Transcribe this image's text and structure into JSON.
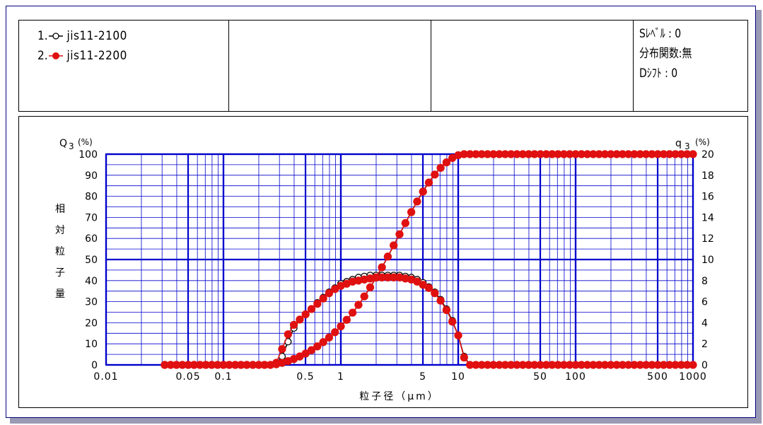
{
  "legend": [
    {
      "num": "1.",
      "name": "jis11-2100",
      "marker": "open-circle"
    },
    {
      "num": "2.",
      "name": "jis11-2200",
      "marker": "filled-circle"
    }
  ],
  "stats": {
    "line1": "Sﾚﾍﾞﾙ : 0",
    "line2": "分布関数:無",
    "line3": "Dｼﾌﾄ  : 0"
  },
  "colors": {
    "grid": "#0000cc",
    "series1": "#000000",
    "series2": "#e01010",
    "frame": "#000080"
  },
  "chart_data": {
    "type": "line",
    "title": "",
    "xlabel": "粒子径（μm）",
    "ylabel_left_symbol": "Q",
    "ylabel_left_sub": "3",
    "ylabel_left_unit": "(%)",
    "ylabel_right_symbol": "q",
    "ylabel_right_sub": "3",
    "ylabel_right_unit": "(%)",
    "ylabel_vertical": "相対粒子量",
    "x_scale": "log",
    "xlim": [
      0.01,
      1000
    ],
    "ylim_left": [
      0,
      100
    ],
    "ylim_right": [
      0,
      20
    ],
    "x_tick_labels": [
      {
        "v": 0.01,
        "t": "0.01"
      },
      {
        "v": 0.05,
        "t": "0.05"
      },
      {
        "v": 0.1,
        "t": "0.1"
      },
      {
        "v": 0.5,
        "t": "0.5"
      },
      {
        "v": 1,
        "t": "1"
      },
      {
        "v": 5,
        "t": "5"
      },
      {
        "v": 10,
        "t": "10"
      },
      {
        "v": 50,
        "t": "50"
      },
      {
        "v": 100,
        "t": "100"
      },
      {
        "v": 500,
        "t": "500"
      },
      {
        "v": 1000,
        "t": "1000"
      }
    ],
    "y_left_ticks": [
      "0",
      "10",
      "20",
      "30",
      "40",
      "50",
      "60",
      "70",
      "80",
      "90",
      "100"
    ],
    "y_right_ticks": [
      "0",
      "2",
      "4",
      "6",
      "8",
      "10",
      "12",
      "14",
      "16",
      "18",
      "20"
    ],
    "grid": true,
    "x": [
      0.0316,
      0.0355,
      0.0398,
      0.0447,
      0.0501,
      0.0562,
      0.0631,
      0.0708,
      0.0794,
      0.0891,
      0.1,
      0.112,
      0.126,
      0.141,
      0.158,
      0.178,
      0.2,
      0.224,
      0.251,
      0.282,
      0.316,
      0.355,
      0.398,
      0.447,
      0.501,
      0.562,
      0.631,
      0.708,
      0.794,
      0.891,
      1.0,
      1.122,
      1.259,
      1.413,
      1.585,
      1.778,
      1.995,
      2.239,
      2.512,
      2.818,
      3.162,
      3.548,
      3.981,
      4.467,
      5.012,
      5.623,
      6.31,
      7.079,
      7.943,
      8.913,
      10.0,
      11.22,
      12.59,
      14.13,
      15.85,
      17.78,
      19.95,
      22.39,
      25.12,
      28.18,
      31.62,
      35.48,
      39.81,
      44.67,
      50.12,
      56.23,
      63.1,
      70.79,
      79.43,
      89.13,
      100,
      112.2,
      125.9,
      141.3,
      158.5,
      177.8,
      199.5,
      223.9,
      251.2,
      281.8,
      316.2,
      354.8,
      398.1,
      446.7,
      501.2,
      562.3,
      631,
      707.9,
      794.3,
      891.3,
      1000
    ],
    "series": [
      {
        "name": "jis11-2100",
        "cumulative": [
          0,
          0,
          0,
          0,
          0,
          0,
          0,
          0,
          0,
          0,
          0,
          0,
          0,
          0,
          0,
          0,
          0,
          0,
          0,
          0.2,
          0.8,
          1.6,
          2.6,
          3.8,
          5.2,
          6.8,
          8.6,
          10.6,
          12.9,
          15.4,
          18.2,
          21.3,
          24.7,
          28.4,
          32.4,
          36.7,
          41.3,
          46.2,
          51.3,
          56.6,
          61.9,
          67.3,
          72.6,
          77.7,
          82.4,
          86.7,
          90.4,
          93.6,
          96.2,
          98.3,
          99.6,
          100,
          100,
          100,
          100,
          100,
          100,
          100,
          100,
          100,
          100,
          100,
          100,
          100,
          100,
          100,
          100,
          100,
          100,
          100,
          100,
          100,
          100,
          100,
          100,
          100,
          100,
          100,
          100,
          100,
          100,
          100,
          100,
          100,
          100,
          100,
          100,
          100,
          100,
          100,
          100
        ],
        "frequency": [
          0,
          0,
          0,
          0,
          0,
          0,
          0,
          0,
          0,
          0,
          0,
          0,
          0,
          0,
          0,
          0,
          0,
          0,
          0,
          0.1,
          0.8,
          2.2,
          3.5,
          4.3,
          4.8,
          5.3,
          5.9,
          6.4,
          6.9,
          7.3,
          7.7,
          7.9,
          8.1,
          8.3,
          8.4,
          8.5,
          8.5,
          8.5,
          8.5,
          8.5,
          8.5,
          8.4,
          8.3,
          8.1,
          7.8,
          7.4,
          6.9,
          6.2,
          5.3,
          4.2,
          2.8,
          0.8,
          0,
          0,
          0,
          0,
          0,
          0,
          0,
          0,
          0,
          0,
          0,
          0,
          0,
          0,
          0,
          0,
          0,
          0,
          0,
          0,
          0,
          0,
          0,
          0,
          0,
          0,
          0,
          0,
          0,
          0,
          0,
          0,
          0,
          0,
          0,
          0,
          0,
          0,
          0
        ]
      },
      {
        "name": "jis11-2200",
        "cumulative": [
          0,
          0,
          0,
          0,
          0,
          0,
          0,
          0,
          0,
          0,
          0,
          0,
          0,
          0,
          0,
          0,
          0,
          0,
          0,
          0.3,
          1.0,
          1.8,
          2.8,
          4.0,
          5.4,
          7.0,
          8.8,
          10.8,
          13.0,
          15.5,
          18.3,
          21.4,
          24.8,
          28.5,
          32.5,
          36.8,
          41.4,
          46.3,
          51.4,
          56.7,
          62.0,
          67.3,
          72.5,
          77.5,
          82.2,
          86.5,
          90.3,
          93.5,
          96.1,
          98.2,
          99.5,
          100,
          100,
          100,
          100,
          100,
          100,
          100,
          100,
          100,
          100,
          100,
          100,
          100,
          100,
          100,
          100,
          100,
          100,
          100,
          100,
          100,
          100,
          100,
          100,
          100,
          100,
          100,
          100,
          100,
          100,
          100,
          100,
          100,
          100,
          100,
          100,
          100,
          100,
          100,
          100
        ],
        "frequency": [
          0,
          0,
          0,
          0,
          0,
          0,
          0,
          0,
          0,
          0,
          0,
          0,
          0,
          0,
          0,
          0,
          0,
          0,
          0,
          0.2,
          1.5,
          2.9,
          3.8,
          4.3,
          4.8,
          5.3,
          5.8,
          6.3,
          6.8,
          7.2,
          7.5,
          7.7,
          7.9,
          8.0,
          8.1,
          8.2,
          8.3,
          8.3,
          8.3,
          8.3,
          8.3,
          8.2,
          8.1,
          7.9,
          7.6,
          7.3,
          6.8,
          6.1,
          5.2,
          4.1,
          2.8,
          0.7,
          0,
          0,
          0,
          0,
          0,
          0,
          0,
          0,
          0,
          0,
          0,
          0,
          0,
          0,
          0,
          0,
          0,
          0,
          0,
          0,
          0,
          0,
          0,
          0,
          0,
          0,
          0,
          0,
          0,
          0,
          0,
          0,
          0,
          0,
          0,
          0,
          0,
          0,
          0
        ]
      }
    ]
  }
}
